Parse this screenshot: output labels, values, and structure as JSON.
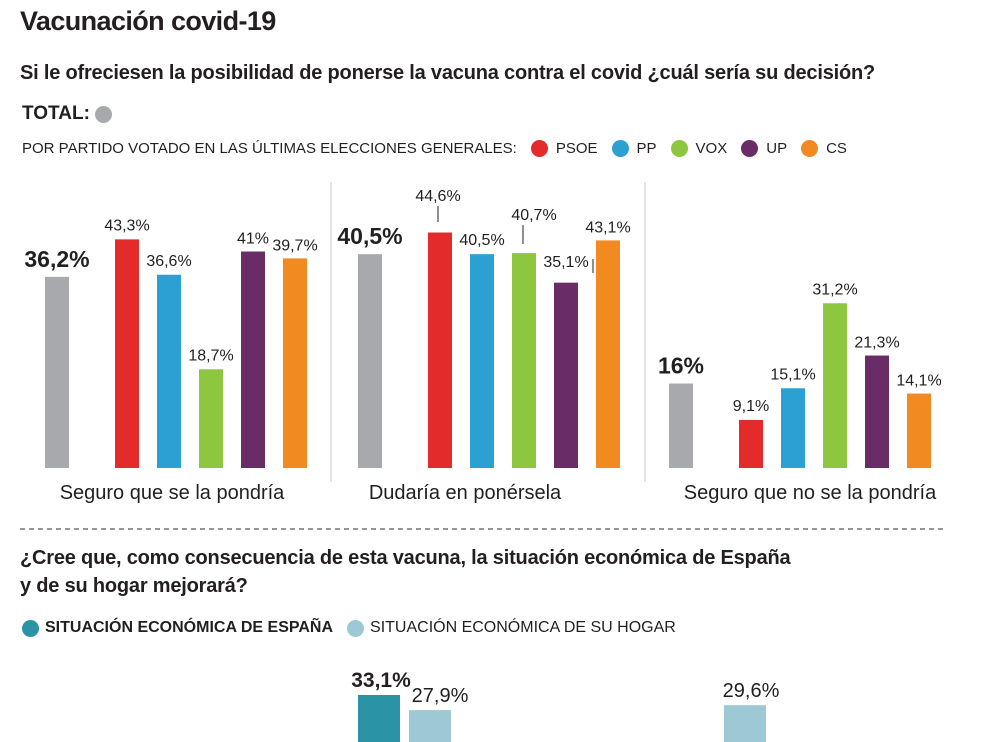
{
  "title": "Vacunación covid-19",
  "question1": "Si le ofreciesen la posibilidad de ponerse la vacuna contra el covid ¿cuál sería su decisión?",
  "total_label": "TOTAL:",
  "party_legend_prefix": "POR PARTIDO VOTADO EN LAS ÚLTIMAS ELECCIONES GENERALES:",
  "colors": {
    "total": "#a7a9ac",
    "PSOE": "#e42b2b",
    "PP": "#2c9fd3",
    "VOX": "#8dc63f",
    "UP": "#6a2c66",
    "CS": "#f18a21",
    "espana": "#2b93a6",
    "hogar": "#9cc9d3"
  },
  "question2": [
    "¿Cree que, como consecuencia de esta vacuna, la situación económica de España",
    "y de su hogar mejorará?"
  ],
  "chart_data": [
    {
      "type": "bar",
      "title": "Si le ofreciesen la posibilidad de ponerse la vacuna contra el covid ¿cuál sería su decisión?",
      "categories": [
        "Seguro que se la pondría",
        "Dudaría en ponérsela",
        "Seguro que no se la pondría"
      ],
      "series": [
        {
          "name": "TOTAL",
          "values": [
            36.2,
            40.5,
            16
          ],
          "labels": [
            "36,2%",
            "40,5%",
            "16%"
          ]
        },
        {
          "name": "PSOE",
          "values": [
            43.3,
            44.6,
            9.1
          ],
          "labels": [
            "43,3%",
            "44,6%",
            "9,1%"
          ]
        },
        {
          "name": "PP",
          "values": [
            36.6,
            40.5,
            15.1
          ],
          "labels": [
            "36,6%",
            "40,5%",
            "15,1%"
          ]
        },
        {
          "name": "VOX",
          "values": [
            18.7,
            40.7,
            31.2
          ],
          "labels": [
            "18,7%",
            "40,7%",
            "31,2%"
          ]
        },
        {
          "name": "UP",
          "values": [
            41,
            35.1,
            21.3
          ],
          "labels": [
            "41%",
            "35,1%",
            "21,3%"
          ]
        },
        {
          "name": "CS",
          "values": [
            39.7,
            43.1,
            14.1
          ],
          "labels": [
            "39,7%",
            "43,1%",
            "14,1%"
          ]
        }
      ],
      "ylim": [
        0,
        45
      ],
      "xlabel": "",
      "ylabel": ""
    },
    {
      "type": "bar",
      "title": "¿Cree que, como consecuencia de esta vacuna, la situación económica de España y de su hogar mejorará?",
      "series": [
        {
          "name": "SITUACIÓN ECONÓMICA DE ESPAÑA",
          "values": [
            33.1
          ],
          "labels": [
            "33,1%"
          ]
        },
        {
          "name": "SITUACIÓN ECONÓMICA DE SU HOGAR",
          "values": [
            27.9,
            29.6
          ],
          "labels": [
            "27,9%",
            "29,6%"
          ]
        }
      ]
    }
  ]
}
